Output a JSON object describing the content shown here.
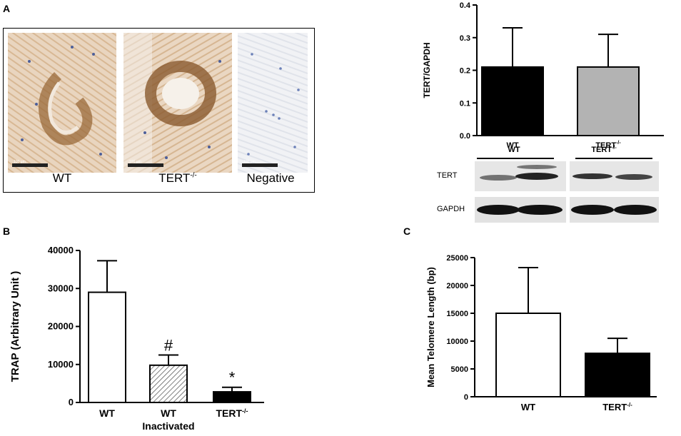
{
  "panel_labels": {
    "a": "A",
    "b": "B",
    "c": "C"
  },
  "histology": {
    "images": [
      {
        "label": "WT",
        "scale": "100 µm",
        "stain": "brown"
      },
      {
        "label": "TERT",
        "label_sup": "-/-",
        "scale": "100 µm",
        "stain": "brown"
      },
      {
        "label": "Negative",
        "scale": "100 µm",
        "stain": "blue"
      }
    ]
  },
  "western_blot": {
    "group_labels": [
      {
        "text": "WT",
        "sup": ""
      },
      {
        "text": "TERT",
        "sup": "-/-"
      }
    ],
    "bands": [
      "TERT",
      "GAPDH"
    ]
  },
  "colors": {
    "black": "#000000",
    "gray": "#b3b3b3",
    "white": "#ffffff"
  },
  "chart_data": [
    {
      "panel": "A",
      "type": "bar",
      "categories": [
        {
          "text": "WT",
          "sup": ""
        },
        {
          "text": "TERT",
          "sup": "-/-"
        }
      ],
      "values": [
        0.21,
        0.21
      ],
      "errors": [
        0.12,
        0.1
      ],
      "fills": [
        "black",
        "gray"
      ],
      "ylabel": "TERT/GAPDH",
      "ylim": [
        0,
        0.4
      ],
      "yticks": [
        "0.0",
        "0.1",
        "0.2",
        "0.3",
        "0.4"
      ]
    },
    {
      "panel": "B",
      "type": "bar",
      "categories": [
        {
          "text": "WT",
          "sup": "",
          "sub": ""
        },
        {
          "text": "WT",
          "sup": "",
          "sub": "Inactivated"
        },
        {
          "text": "TERT",
          "sup": "-/-",
          "sub": ""
        }
      ],
      "values": [
        29000,
        9800,
        2800
      ],
      "errors": [
        8300,
        2700,
        1200
      ],
      "fills": [
        "white",
        "hatch",
        "black"
      ],
      "annotations": [
        "",
        "#",
        "*"
      ],
      "ylabel": "TRAP (Arbitrary Unit )",
      "ylim": [
        0,
        40000
      ],
      "yticks": [
        "0",
        "10000",
        "20000",
        "30000",
        "40000"
      ]
    },
    {
      "panel": "C",
      "type": "bar",
      "categories": [
        {
          "text": "WT",
          "sup": ""
        },
        {
          "text": "TERT",
          "sup": "-/-"
        }
      ],
      "values": [
        15000,
        7800
      ],
      "errors": [
        8200,
        2700
      ],
      "fills": [
        "white",
        "black"
      ],
      "ylabel": "Mean Telomere Length (bp)",
      "ylim": [
        0,
        25000
      ],
      "yticks": [
        "0",
        "5000",
        "10000",
        "15000",
        "20000",
        "25000"
      ]
    }
  ]
}
